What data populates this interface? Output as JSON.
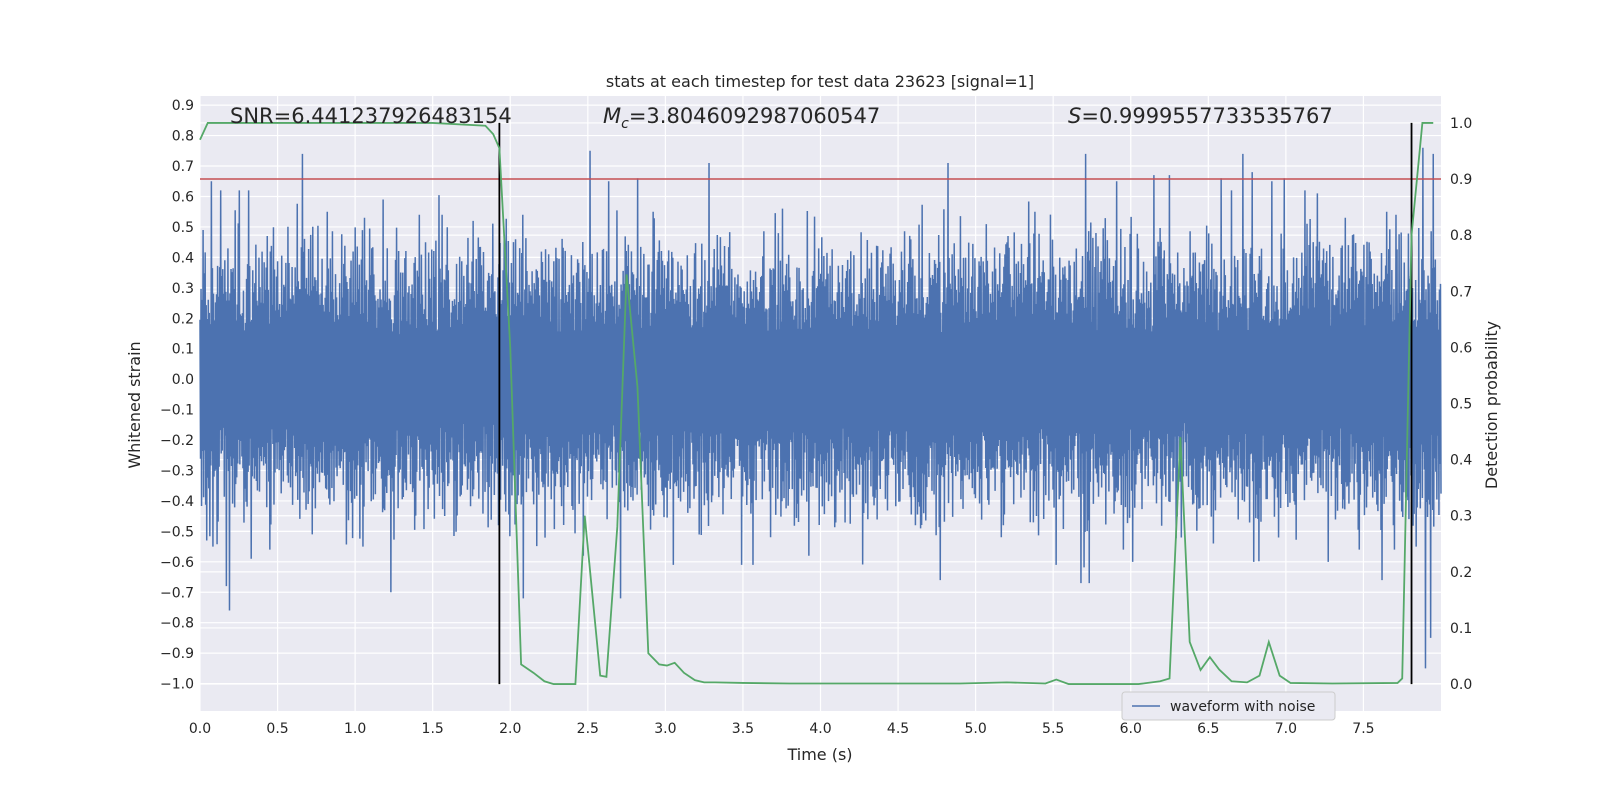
{
  "chart_data": {
    "type": "line",
    "title": "stats at each timestep for test data 23623 [signal=1]",
    "xlabel": "Time (s)",
    "ylabel": "Whitened strain",
    "y2label": "Detection probability",
    "xlim": [
      0,
      8
    ],
    "ylim": [
      -1.09,
      0.93
    ],
    "y2lim": [
      -0.048,
      1.048
    ],
    "xticks": [
      "0.0",
      "0.5",
      "1.0",
      "1.5",
      "2.0",
      "2.5",
      "3.0",
      "3.5",
      "4.0",
      "4.5",
      "5.0",
      "5.5",
      "6.0",
      "6.5",
      "7.0",
      "7.5"
    ],
    "yticks": [
      "−1.0",
      "−0.9",
      "−0.8",
      "−0.7",
      "−0.6",
      "−0.5",
      "−0.4",
      "−0.3",
      "−0.2",
      "−0.1",
      "0.0",
      "0.1",
      "0.2",
      "0.3",
      "0.4",
      "0.5",
      "0.6",
      "0.7",
      "0.8",
      "0.9"
    ],
    "y2ticks": [
      "0.0",
      "0.1",
      "0.2",
      "0.3",
      "0.4",
      "0.5",
      "0.6",
      "0.7",
      "0.8",
      "0.9",
      "1.0"
    ],
    "annotations": {
      "snr": "SNR=6.441237926483154",
      "mc_symbol": "M",
      "mc_sub": "c",
      "mc_value": "=3.8046092987060547",
      "s_symbol": "S",
      "s_value": "=0.9999557733535767"
    },
    "legend": {
      "label": "waveform with noise",
      "position": "lower-right"
    },
    "threshold": {
      "value": 0.9,
      "axis": "right",
      "color": "#c44e52"
    },
    "vlines": [
      1.93,
      7.81
    ],
    "waveform": {
      "name": "waveform with noise",
      "color": "#4c72b0",
      "t_range": [
        0,
        8
      ],
      "typical_amplitude": 0.45,
      "peaks": [
        [
          0.02,
          0.49
        ],
        [
          0.07,
          0.65
        ],
        [
          0.13,
          0.62
        ],
        [
          0.25,
          0.62
        ],
        [
          0.31,
          0.62
        ],
        [
          0.66,
          0.74
        ],
        [
          0.82,
          0.55
        ],
        [
          1.06,
          0.53
        ],
        [
          1.18,
          0.59
        ],
        [
          1.41,
          0.54
        ],
        [
          1.56,
          0.54
        ],
        [
          1.76,
          0.52
        ],
        [
          2.08,
          0.54
        ],
        [
          2.51,
          0.75
        ],
        [
          2.63,
          0.65
        ],
        [
          2.82,
          0.66
        ],
        [
          2.92,
          0.55
        ],
        [
          3.28,
          0.71
        ],
        [
          3.75,
          0.56
        ],
        [
          4.82,
          0.71
        ],
        [
          5.38,
          0.55
        ],
        [
          5.71,
          0.74
        ],
        [
          5.91,
          0.65
        ],
        [
          6.15,
          0.67
        ],
        [
          6.25,
          0.67
        ],
        [
          6.58,
          0.66
        ],
        [
          6.65,
          0.62
        ],
        [
          6.72,
          0.74
        ],
        [
          6.78,
          0.68
        ],
        [
          6.91,
          0.65
        ],
        [
          6.99,
          0.66
        ],
        [
          7.12,
          0.62
        ],
        [
          7.2,
          0.61
        ],
        [
          7.38,
          0.53
        ],
        [
          7.65,
          0.55
        ],
        [
          7.71,
          0.54
        ],
        [
          7.88,
          0.76
        ],
        [
          7.95,
          0.74
        ]
      ],
      "troughs": [
        [
          0.04,
          -0.53
        ],
        [
          0.08,
          -0.55
        ],
        [
          0.17,
          -0.68
        ],
        [
          0.19,
          -0.76
        ],
        [
          0.33,
          -0.59
        ],
        [
          0.45,
          -0.56
        ],
        [
          0.72,
          -0.51
        ],
        [
          1.05,
          -0.55
        ],
        [
          1.23,
          -0.7
        ],
        [
          1.92,
          -0.48
        ],
        [
          2.08,
          -0.72
        ],
        [
          2.47,
          -0.58
        ],
        [
          2.62,
          -0.46
        ],
        [
          2.71,
          -0.72
        ],
        [
          3.05,
          -0.61
        ],
        [
          3.56,
          -0.61
        ],
        [
          3.92,
          -0.58
        ],
        [
          4.61,
          -0.48
        ],
        [
          4.77,
          -0.66
        ],
        [
          5.18,
          -0.48
        ],
        [
          5.35,
          -0.47
        ],
        [
          5.52,
          -0.61
        ],
        [
          5.68,
          -0.67
        ],
        [
          5.73,
          -0.67
        ],
        [
          5.95,
          -0.56
        ],
        [
          6.01,
          -0.6
        ],
        [
          6.53,
          -0.54
        ],
        [
          6.79,
          -0.6
        ],
        [
          6.95,
          -0.52
        ],
        [
          7.27,
          -0.6
        ],
        [
          7.47,
          -0.56
        ],
        [
          7.62,
          -0.66
        ],
        [
          7.7,
          -0.56
        ],
        [
          7.84,
          -0.55
        ],
        [
          7.9,
          -0.95
        ],
        [
          7.93,
          -0.85
        ]
      ]
    },
    "probability": {
      "name": "Detection probability",
      "color": "#55a868",
      "axis": "right",
      "x": [
        0,
        0.05,
        0.2,
        0.5,
        1.0,
        1.5,
        1.84,
        1.89,
        1.93,
        2.0,
        2.07,
        2.15,
        2.22,
        2.28,
        2.35,
        2.42,
        2.48,
        2.58,
        2.62,
        2.69,
        2.75,
        2.82,
        2.89,
        2.96,
        3.01,
        3.06,
        3.12,
        3.19,
        3.25,
        3.32,
        3.5,
        3.8,
        4.2,
        4.5,
        4.9,
        5.2,
        5.45,
        5.52,
        5.6,
        6.05,
        6.19,
        6.25,
        6.32,
        6.38,
        6.45,
        6.51,
        6.57,
        6.65,
        6.75,
        6.83,
        6.89,
        6.96,
        7.03,
        7.3,
        7.72,
        7.75,
        7.81,
        7.88,
        7.95
      ],
      "y": [
        0.97,
        1.0,
        1.0,
        1.0,
        1.0,
        1.0,
        0.995,
        0.98,
        0.955,
        0.6,
        0.035,
        0.02,
        0.005,
        0.0,
        0.0,
        0.0,
        0.3,
        0.015,
        0.013,
        0.28,
        0.73,
        0.53,
        0.055,
        0.035,
        0.033,
        0.038,
        0.02,
        0.007,
        0.003,
        0.003,
        0.002,
        0.001,
        0.001,
        0.001,
        0.001,
        0.003,
        0.001,
        0.008,
        0.0,
        0.0,
        0.005,
        0.01,
        0.44,
        0.075,
        0.025,
        0.048,
        0.026,
        0.005,
        0.003,
        0.015,
        0.075,
        0.015,
        0.002,
        0.001,
        0.002,
        0.01,
        0.8,
        1.0,
        1.0
      ]
    }
  }
}
